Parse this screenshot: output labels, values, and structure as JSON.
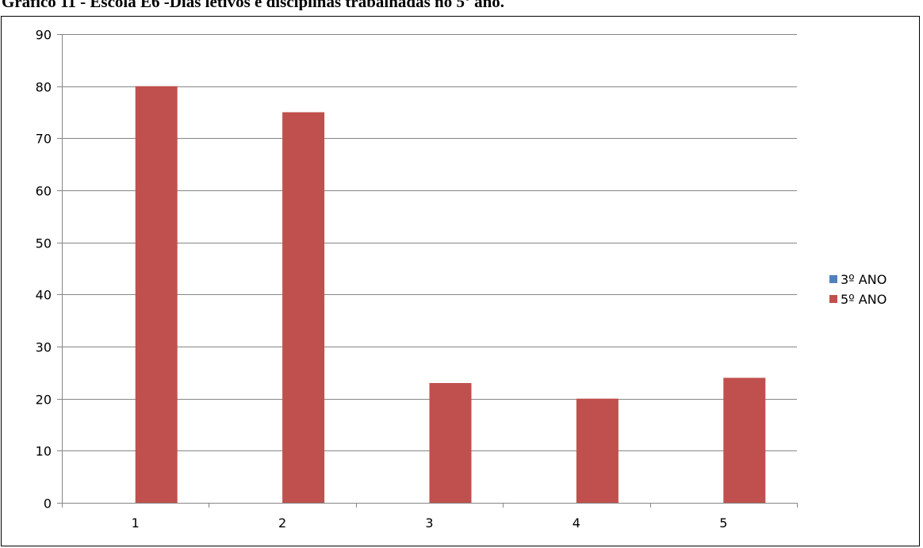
{
  "chart_data": {
    "type": "bar",
    "title": "Gráfico 11 - Escola E6 -Dias letivos e disciplinas trabalhadas no 5º ano.",
    "categories": [
      "1",
      "2",
      "3",
      "4",
      "5"
    ],
    "series": [
      {
        "name": "3º ANO",
        "color": "#4F81BD",
        "values": [
          0,
          0,
          0,
          0,
          0
        ]
      },
      {
        "name": "5º ANO",
        "color": "#C0504D",
        "values": [
          80,
          75,
          23,
          20,
          24
        ]
      }
    ],
    "xlabel": "",
    "ylabel": "",
    "ylim": [
      0,
      90
    ],
    "yticks": [
      0,
      10,
      20,
      30,
      40,
      50,
      60,
      70,
      80,
      90
    ],
    "grid": true,
    "legend_position": "right"
  }
}
